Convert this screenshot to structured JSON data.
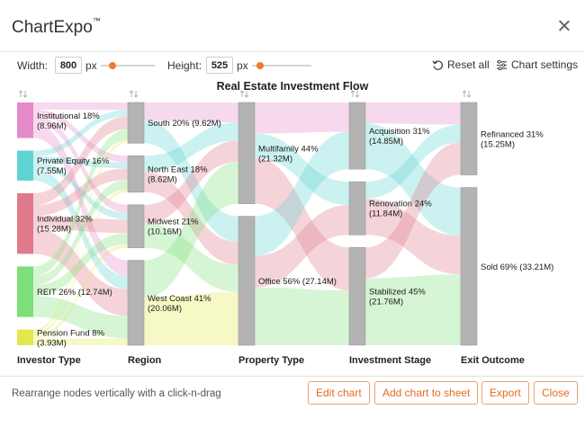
{
  "app": {
    "title": "ChartExpo",
    "trademark": "™"
  },
  "controls": {
    "width_label": "Width:",
    "width_value": "800",
    "width_unit": "px",
    "height_label": "Height:",
    "height_value": "525",
    "height_unit": "px",
    "reset_label": "Reset all",
    "settings_label": "Chart settings",
    "accent_color": "#f07b2c"
  },
  "chart_data": {
    "type": "sankey",
    "title": "Real Estate Investment Flow",
    "columns": [
      "Investor Type",
      "Region",
      "Property Type",
      "Investment Stage",
      "Exit Outcome"
    ],
    "nodes": [
      {
        "id": "institutional",
        "column": 0,
        "label": "Institutional 18%",
        "value_label": "(8.96M)",
        "value": 8.96,
        "color": "#e58ac9"
      },
      {
        "id": "private",
        "column": 0,
        "label": "Private Equity 16%",
        "value_label": "(7.55M)",
        "value": 7.55,
        "color": "#5fd3d3"
      },
      {
        "id": "individual",
        "column": 0,
        "label": "Individual 32%",
        "value_label": "(15.28M)",
        "value": 15.28,
        "color": "#e07a8a"
      },
      {
        "id": "reit",
        "column": 0,
        "label": "REIT 26% (12.74M)",
        "value_label": "",
        "value": 12.74,
        "color": "#7ee07a"
      },
      {
        "id": "pension",
        "column": 0,
        "label": "Pension Fund 8%",
        "value_label": "(3.93M)",
        "value": 3.93,
        "color": "#e2e84c"
      },
      {
        "id": "south",
        "column": 1,
        "label": "South 20% (9.62M)",
        "value_label": "",
        "value": 9.62,
        "color": "#b3b3b3"
      },
      {
        "id": "northeast",
        "column": 1,
        "label": "North East 18%",
        "value_label": "(8.62M)",
        "value": 8.62,
        "color": "#b3b3b3"
      },
      {
        "id": "midwest",
        "column": 1,
        "label": "Midwest 21%",
        "value_label": "(10.16M)",
        "value": 10.16,
        "color": "#b3b3b3"
      },
      {
        "id": "westcoast",
        "column": 1,
        "label": "West Coast 41%",
        "value_label": "(20.06M)",
        "value": 20.06,
        "color": "#b3b3b3"
      },
      {
        "id": "multifamily",
        "column": 2,
        "label": "Multifamily 44%",
        "value_label": "(21.32M)",
        "value": 21.32,
        "color": "#b3b3b3"
      },
      {
        "id": "office",
        "column": 2,
        "label": "Office 56% (27.14M)",
        "value_label": "",
        "value": 27.14,
        "color": "#b3b3b3"
      },
      {
        "id": "acquisition",
        "column": 3,
        "label": "Acquisition 31%",
        "value_label": "(14.85M)",
        "value": 14.85,
        "color": "#b3b3b3"
      },
      {
        "id": "renovation",
        "column": 3,
        "label": "Renovation 24%",
        "value_label": "(11.84M)",
        "value": 11.84,
        "color": "#b3b3b3"
      },
      {
        "id": "stabilized",
        "column": 3,
        "label": "Stabilized 45%",
        "value_label": "(21.76M)",
        "value": 21.76,
        "color": "#b3b3b3"
      },
      {
        "id": "refinanced",
        "column": 4,
        "label": "Refinanced 31%",
        "value_label": "(15.25M)",
        "value": 15.25,
        "color": "#b3b3b3"
      },
      {
        "id": "sold",
        "column": 4,
        "label": "Sold 69% (33.21M)",
        "value_label": "",
        "value": 33.21,
        "color": "#b3b3b3"
      }
    ]
  },
  "footer": {
    "hint": "Rearrange nodes vertically with a click-n-drag",
    "edit_label": "Edit chart",
    "add_label": "Add chart to sheet",
    "export_label": "Export",
    "close_label": "Close"
  }
}
